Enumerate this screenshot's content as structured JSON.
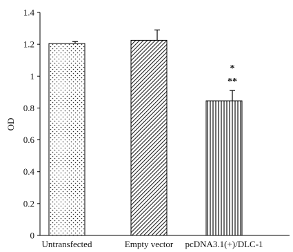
{
  "chart_data": {
    "type": "bar",
    "title": "",
    "xlabel": "",
    "ylabel": "OD",
    "ylim": [
      0,
      1.4
    ],
    "yticks": [
      0,
      0.2,
      0.4,
      0.6,
      0.8,
      1,
      1.2,
      1.4
    ],
    "ytick_labels": [
      "0",
      "0.2",
      "0.4",
      "0.6",
      "0.8",
      "1",
      "1.2",
      "1.4"
    ],
    "grid": false,
    "categories": [
      "Untransfected",
      "Empty vector",
      "pcDNA3.1(+)/DLC-1"
    ],
    "values": [
      1.205,
      1.225,
      0.845
    ],
    "errors": [
      0.012,
      0.065,
      0.065
    ],
    "patterns": [
      "dots",
      "diagonal",
      "vertical"
    ],
    "annotations": [
      {
        "category": "pcDNA3.1(+)/DLC-1",
        "lines": [
          "*",
          "**"
        ]
      }
    ]
  }
}
